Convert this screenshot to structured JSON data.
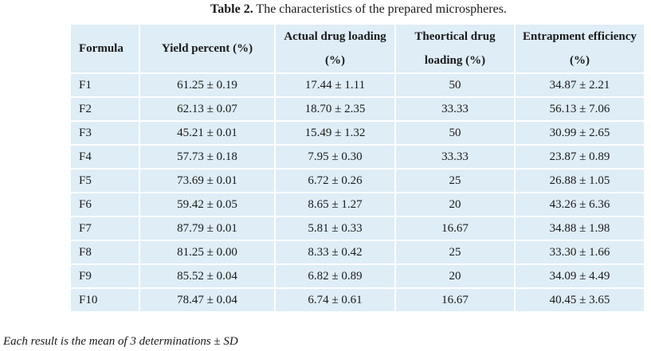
{
  "caption": {
    "label": "Table 2.",
    "text": " The characteristics of the prepared microspheres."
  },
  "columns": [
    "Formula",
    "Yield percent (%)",
    "Actual drug loading (%)",
    "Theortical drug loading (%)",
    "Entrapment efficiency (%)"
  ],
  "rows": [
    [
      "F1",
      "61.25 ± 0.19",
      "17.44 ± 1.11",
      "50",
      "34.87 ± 2.21"
    ],
    [
      "F2",
      "62.13 ± 0.07",
      "18.70 ± 2.35",
      "33.33",
      "56.13 ± 7.06"
    ],
    [
      "F3",
      "45.21 ± 0.01",
      "15.49 ± 1.32",
      "50",
      "30.99 ± 2.65"
    ],
    [
      "F4",
      "57.73 ± 0.18",
      "7.95 ± 0.30",
      "33.33",
      "23.87 ± 0.89"
    ],
    [
      "F5",
      "73.69 ± 0.01",
      "6.72 ± 0.26",
      "25",
      "26.88 ± 1.05"
    ],
    [
      "F6",
      "59.42 ± 0.05",
      "8.65 ± 1.27",
      "20",
      "43.26 ± 6.36"
    ],
    [
      "F7",
      "87.79 ± 0.01",
      "5.81 ± 0.33",
      "16.67",
      "34.88 ± 1.98"
    ],
    [
      "F8",
      "81.25 ± 0.00",
      "8.33 ± 0.42",
      "25",
      "33.30 ± 1.66"
    ],
    [
      "F9",
      "85.52 ± 0.04",
      "6.82 ± 0.89",
      "20",
      "34.09 ± 4.49"
    ],
    [
      "F10",
      "78.47 ± 0.04",
      "6.74 ± 0.61",
      "16.67",
      "40.45 ± 3.65"
    ]
  ],
  "footnote": "Each result is the mean of 3 determinations ± SD"
}
